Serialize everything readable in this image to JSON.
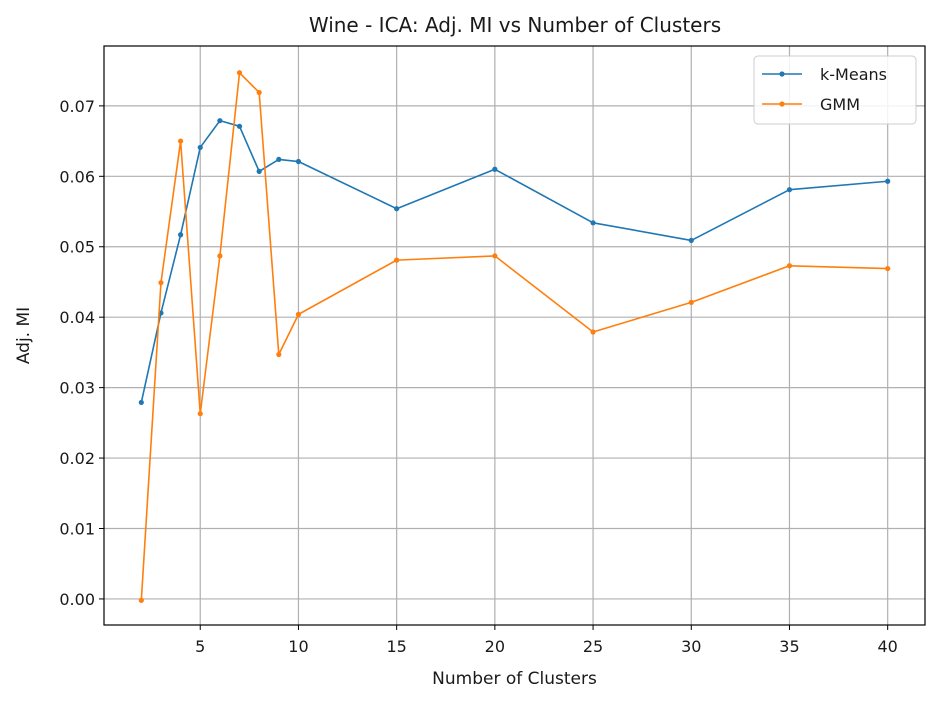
{
  "chart_data": {
    "type": "line",
    "title": "Wine - ICA: Adj. MI vs Number of Clusters",
    "xlabel": "Number of Clusters",
    "ylabel": "Adj. MI",
    "xlim": [
      0.1,
      41.9
    ],
    "ylim": [
      -0.0037,
      0.0785
    ],
    "xticks": [
      5,
      10,
      15,
      20,
      25,
      30,
      35,
      40
    ],
    "xtick_labels": [
      "5",
      "10",
      "15",
      "20",
      "25",
      "30",
      "35",
      "40"
    ],
    "yticks": [
      0.0,
      0.01,
      0.02,
      0.03,
      0.04,
      0.05,
      0.06,
      0.07
    ],
    "ytick_labels": [
      "0.00",
      "0.01",
      "0.02",
      "0.03",
      "0.04",
      "0.05",
      "0.06",
      "0.07"
    ],
    "grid": true,
    "legend_position": "top-right",
    "x": [
      2,
      3,
      4,
      5,
      6,
      7,
      8,
      9,
      10,
      15,
      20,
      25,
      30,
      35,
      40
    ],
    "series": [
      {
        "name": "k-Means",
        "color": "#1f77b4",
        "values": [
          0.0279,
          0.0406,
          0.0517,
          0.0641,
          0.0679,
          0.0671,
          0.0607,
          0.0624,
          0.0621,
          0.0554,
          0.061,
          0.0534,
          0.0509,
          0.0581,
          0.0593
        ]
      },
      {
        "name": "GMM",
        "color": "#ff7f0e",
        "values": [
          -0.0002,
          0.0449,
          0.065,
          0.0263,
          0.0487,
          0.0747,
          0.0719,
          0.0347,
          0.0404,
          0.0481,
          0.0487,
          0.0379,
          0.0421,
          0.0473,
          0.0469
        ]
      }
    ]
  }
}
